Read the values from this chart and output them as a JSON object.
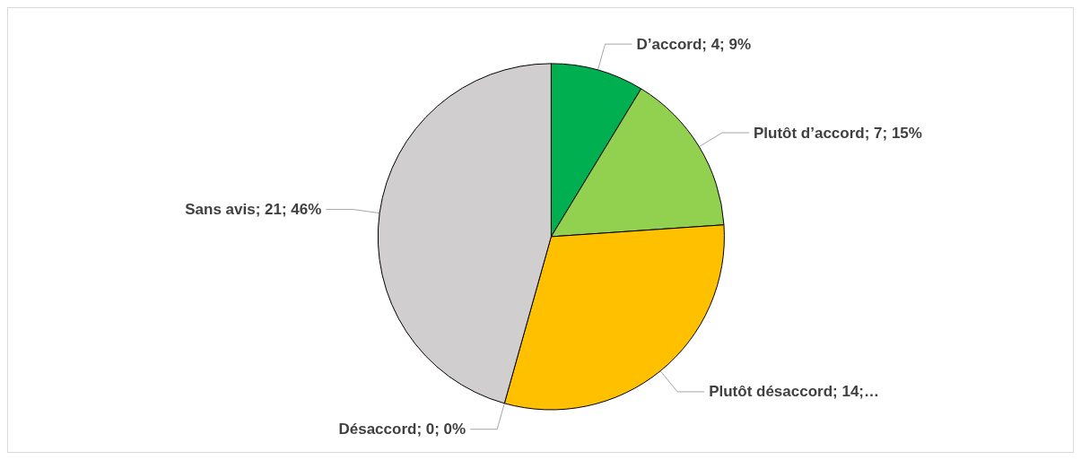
{
  "chart_data": {
    "type": "pie",
    "categories": [
      "D’accord",
      "Plutôt d’accord",
      "Plutôt désaccord",
      "Désaccord",
      "Sans avis"
    ],
    "values": [
      4,
      7,
      14,
      0,
      21
    ],
    "colors": [
      "#00b050",
      "#92d050",
      "#ffc000",
      "#c00000",
      "#d0cece"
    ],
    "value_labels": [
      "; 4; 9%",
      "; 7; 15%",
      "; 14;…",
      "; 0; 0%",
      "; 21; 46%"
    ]
  }
}
